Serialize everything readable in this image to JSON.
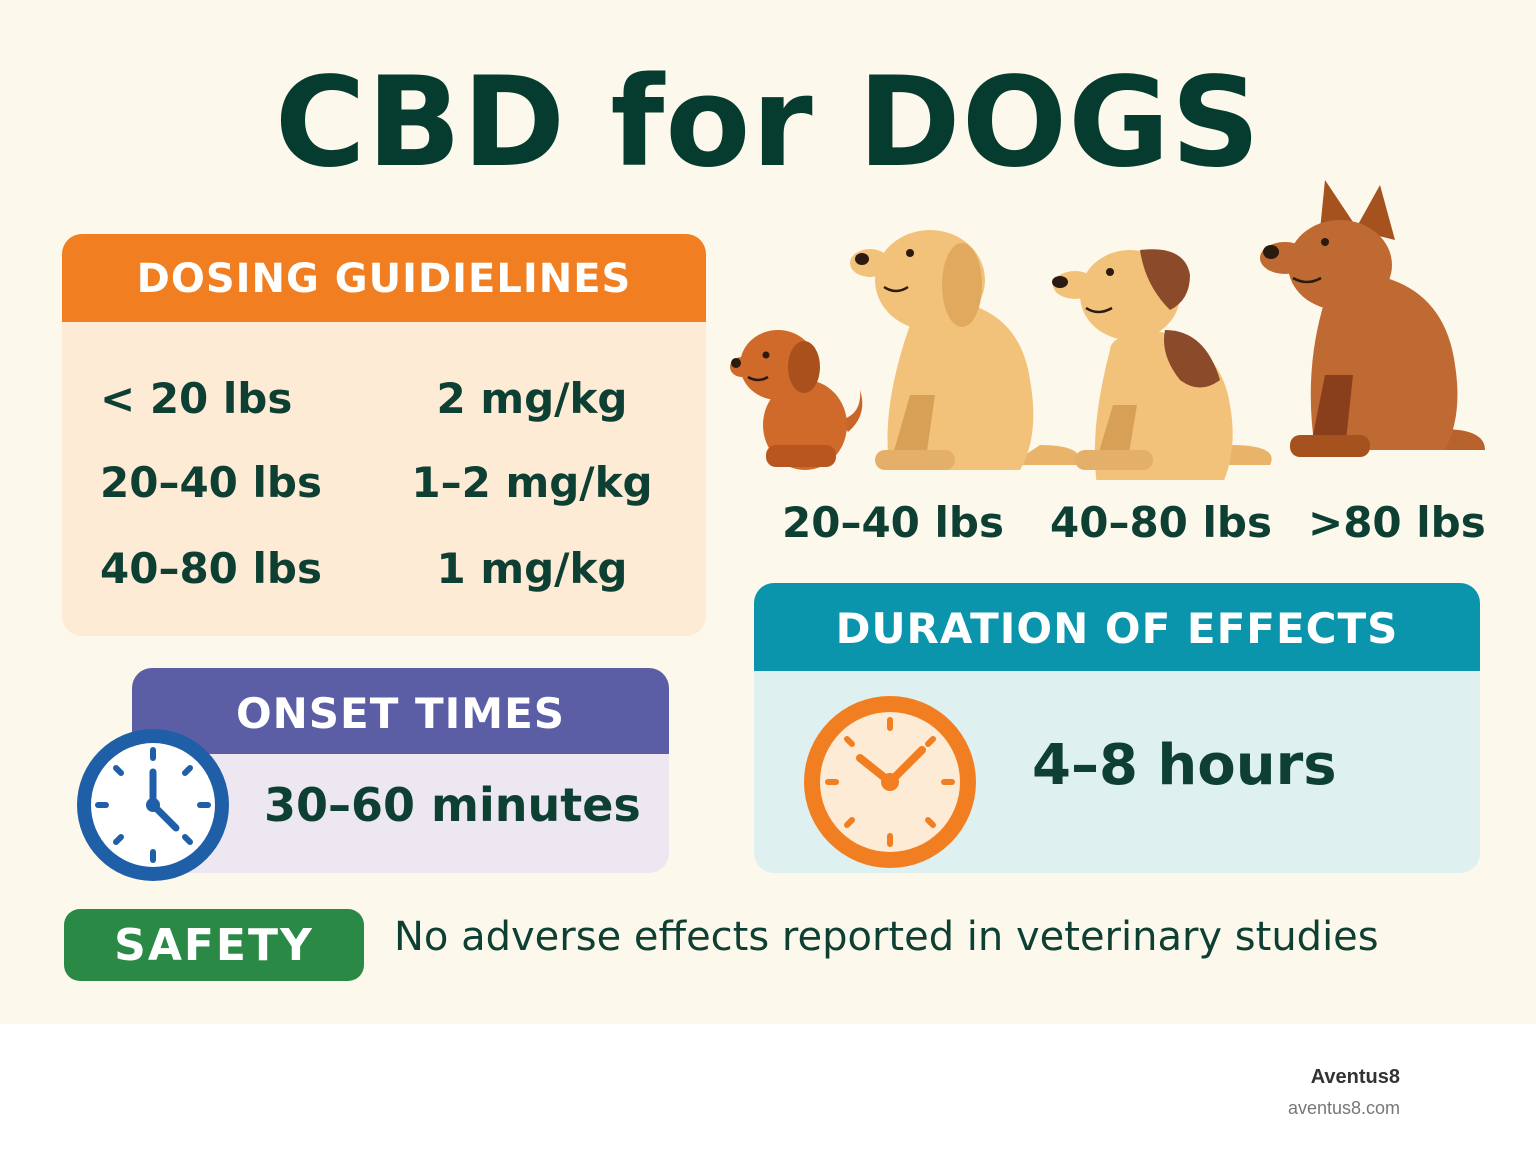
{
  "title": "CBD for DOGS",
  "dosing": {
    "heading": "DOSING GUIDIELINES",
    "rows": [
      {
        "weight": "< 20 lbs",
        "dose": "2 mg/kg"
      },
      {
        "weight": "20–40 lbs",
        "dose": "1–2 mg/kg"
      },
      {
        "weight": "40–80 lbs",
        "dose": "1 mg/kg"
      }
    ]
  },
  "dogs": {
    "labels": [
      "20–40 lbs",
      "40–80 lbs",
      ">80 lbs"
    ]
  },
  "onset": {
    "heading": "ONSET TIMES",
    "value": "30–60 minutes"
  },
  "duration": {
    "heading": "DURATION OF EFFECTS",
    "value": "4–8 hours"
  },
  "safety": {
    "badge": "SAFETY",
    "text": "No adverse effects reported in veterinary studies"
  },
  "brand": {
    "name": "Aventus8",
    "url": "aventus8.com"
  },
  "colors": {
    "background": "#fdf8ec",
    "title": "#063c30",
    "dosing_header": "#f17f22",
    "onset_header": "#5b5ea5",
    "duration_header": "#0a95ad",
    "safety_badge": "#2a8a45",
    "onset_clock": "#1f5fa8",
    "duration_clock": "#f17f22"
  },
  "icons": [
    "blue-clock-icon",
    "orange-clock-icon",
    "small-dog-icon",
    "golden-dog-icon",
    "spotted-dog-icon",
    "shepherd-dog-icon"
  ]
}
